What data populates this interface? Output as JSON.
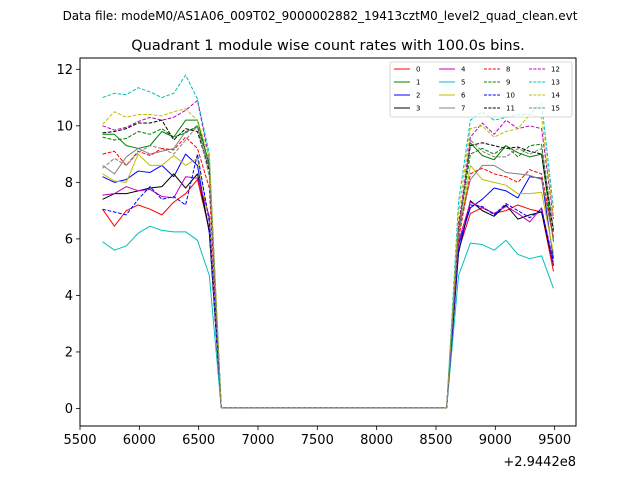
{
  "figure": {
    "suptitle": "Data file: modeM0/AS1A06_009T02_9000002882_19413cztM0_level2_quad_clean.evt"
  },
  "chart_data": {
    "type": "line",
    "title": "Quadrant 1 module wise count rates with 100.0s bins.",
    "xlabel": "",
    "ylabel": "",
    "x_offset_label": "+2.9442e8",
    "xlim": [
      5500,
      9680
    ],
    "ylim": [
      -0.62,
      12.4
    ],
    "xticks": [
      5500,
      6000,
      6500,
      7000,
      7500,
      8000,
      8500,
      9000,
      9500
    ],
    "yticks": [
      0,
      2,
      4,
      6,
      8,
      10,
      12
    ],
    "xtick_labels": [
      "5500",
      "6000",
      "6500",
      "7000",
      "7500",
      "8000",
      "8500",
      "9000",
      "9500"
    ],
    "ytick_labels": [
      "0",
      "2",
      "4",
      "6",
      "8",
      "10",
      "12"
    ],
    "grid": false,
    "legend_position": "top-right",
    "x": [
      5690,
      5790,
      5890,
      5990,
      6090,
      6190,
      6290,
      6390,
      6490,
      6590,
      6690,
      6790,
      6890,
      6990,
      7090,
      7190,
      7290,
      7390,
      7490,
      7590,
      7690,
      7790,
      7890,
      7990,
      8090,
      8190,
      8290,
      8390,
      8490,
      8590,
      8690,
      8790,
      8890,
      8990,
      9090,
      9190,
      9290,
      9390,
      9490
    ],
    "series": [
      {
        "name": "0",
        "color": "#ff0000",
        "dash": "solid",
        "values": [
          7.05,
          6.45,
          7.0,
          7.2,
          7.05,
          6.85,
          7.3,
          7.6,
          8.1,
          6.3,
          0.03,
          0.03,
          0.03,
          0.03,
          0.03,
          0.03,
          0.03,
          0.03,
          0.03,
          0.03,
          0.03,
          0.03,
          0.03,
          0.03,
          0.03,
          0.03,
          0.03,
          0.03,
          0.03,
          0.03,
          5.6,
          6.9,
          7.1,
          6.9,
          7.0,
          7.2,
          7.05,
          6.95,
          4.85
        ]
      },
      {
        "name": "1",
        "color": "#008000",
        "dash": "solid",
        "values": [
          9.7,
          9.7,
          9.3,
          9.2,
          9.3,
          9.8,
          9.6,
          10.2,
          10.2,
          8.6,
          0.03,
          0.03,
          0.03,
          0.03,
          0.03,
          0.03,
          0.03,
          0.03,
          0.03,
          0.03,
          0.03,
          0.03,
          0.03,
          0.03,
          0.03,
          0.03,
          0.03,
          0.03,
          0.03,
          0.03,
          6.2,
          9.4,
          8.95,
          8.8,
          9.3,
          9.05,
          8.9,
          9.0,
          5.9
        ]
      },
      {
        "name": "2",
        "color": "#0000ff",
        "dash": "solid",
        "values": [
          8.2,
          8.0,
          8.1,
          8.4,
          8.35,
          8.6,
          8.2,
          9.0,
          8.6,
          6.2,
          0.03,
          0.03,
          0.03,
          0.03,
          0.03,
          0.03,
          0.03,
          0.03,
          0.03,
          0.03,
          0.03,
          0.03,
          0.03,
          0.03,
          0.03,
          0.03,
          0.03,
          0.03,
          0.03,
          0.03,
          5.8,
          7.1,
          7.4,
          7.8,
          7.7,
          7.45,
          8.2,
          8.15,
          5.3
        ]
      },
      {
        "name": "3",
        "color": "#000000",
        "dash": "solid",
        "values": [
          7.4,
          7.6,
          7.6,
          7.7,
          7.8,
          7.85,
          8.3,
          7.8,
          8.3,
          6.3,
          0.03,
          0.03,
          0.03,
          0.03,
          0.03,
          0.03,
          0.03,
          0.03,
          0.03,
          0.03,
          0.03,
          0.03,
          0.03,
          0.03,
          0.03,
          0.03,
          0.03,
          0.03,
          0.03,
          0.03,
          5.5,
          7.35,
          7.0,
          6.8,
          7.2,
          6.7,
          6.85,
          6.95,
          5.05
        ]
      },
      {
        "name": "4",
        "color": "#bf00bf",
        "dash": "solid",
        "values": [
          7.55,
          7.6,
          7.85,
          7.7,
          7.75,
          7.5,
          7.45,
          8.2,
          8.15,
          6.8,
          0.03,
          0.03,
          0.03,
          0.03,
          0.03,
          0.03,
          0.03,
          0.03,
          0.03,
          0.03,
          0.03,
          0.03,
          0.03,
          0.03,
          0.03,
          0.03,
          0.03,
          0.03,
          0.03,
          0.03,
          5.9,
          7.3,
          7.1,
          6.9,
          7.15,
          6.9,
          6.6,
          7.1,
          5.1
        ]
      },
      {
        "name": "5",
        "color": "#00bfbf",
        "dash": "solid",
        "values": [
          5.9,
          5.6,
          5.75,
          6.2,
          6.45,
          6.3,
          6.25,
          6.25,
          5.95,
          4.7,
          0.03,
          0.03,
          0.03,
          0.03,
          0.03,
          0.03,
          0.03,
          0.03,
          0.03,
          0.03,
          0.03,
          0.03,
          0.03,
          0.03,
          0.03,
          0.03,
          0.03,
          0.03,
          0.03,
          0.03,
          4.7,
          5.85,
          5.8,
          5.6,
          5.95,
          5.45,
          5.3,
          5.4,
          4.25
        ]
      },
      {
        "name": "6",
        "color": "#bfbf00",
        "dash": "solid",
        "values": [
          8.3,
          8.05,
          8.0,
          9.0,
          8.6,
          8.6,
          8.95,
          8.6,
          8.85,
          6.6,
          0.03,
          0.03,
          0.03,
          0.03,
          0.03,
          0.03,
          0.03,
          0.03,
          0.03,
          0.03,
          0.03,
          0.03,
          0.03,
          0.03,
          0.03,
          0.03,
          0.03,
          0.03,
          0.03,
          0.03,
          6.1,
          8.6,
          8.1,
          8.0,
          7.9,
          7.6,
          7.6,
          7.65,
          5.5
        ]
      },
      {
        "name": "7",
        "color": "#808080",
        "dash": "solid",
        "values": [
          8.6,
          8.3,
          8.9,
          9.2,
          9.0,
          9.1,
          9.2,
          9.8,
          9.95,
          8.5,
          0.03,
          0.03,
          0.03,
          0.03,
          0.03,
          0.03,
          0.03,
          0.03,
          0.03,
          0.03,
          0.03,
          0.03,
          0.03,
          0.03,
          0.03,
          0.03,
          0.03,
          0.03,
          0.03,
          0.03,
          6.3,
          8.1,
          8.6,
          8.6,
          8.35,
          8.3,
          8.25,
          8.1,
          6.0
        ]
      },
      {
        "name": "8",
        "color": "#ff0000",
        "dash": "dashed",
        "values": [
          9.0,
          9.1,
          8.6,
          9.1,
          8.95,
          9.2,
          9.15,
          9.6,
          9.2,
          7.8,
          0.03,
          0.03,
          0.03,
          0.03,
          0.03,
          0.03,
          0.03,
          0.03,
          0.03,
          0.03,
          0.03,
          0.03,
          0.03,
          0.03,
          0.03,
          0.03,
          0.03,
          0.03,
          0.03,
          0.03,
          6.0,
          8.3,
          8.5,
          8.3,
          8.2,
          8.0,
          8.45,
          8.3,
          6.05
        ]
      },
      {
        "name": "9",
        "color": "#008000",
        "dash": "dashed",
        "values": [
          9.6,
          9.5,
          9.55,
          9.8,
          9.7,
          9.9,
          9.6,
          9.75,
          10.0,
          8.7,
          0.03,
          0.03,
          0.03,
          0.03,
          0.03,
          0.03,
          0.03,
          0.03,
          0.03,
          0.03,
          0.03,
          0.03,
          0.03,
          0.03,
          0.03,
          0.03,
          0.03,
          0.03,
          0.03,
          0.03,
          6.3,
          9.0,
          9.2,
          9.0,
          9.3,
          8.9,
          9.3,
          9.35,
          6.2
        ]
      },
      {
        "name": "10",
        "color": "#0000ff",
        "dash": "dashed",
        "values": [
          7.05,
          6.95,
          6.85,
          7.4,
          7.85,
          7.4,
          7.5,
          7.2,
          9.0,
          6.6,
          0.03,
          0.03,
          0.03,
          0.03,
          0.03,
          0.03,
          0.03,
          0.03,
          0.03,
          0.03,
          0.03,
          0.03,
          0.03,
          0.03,
          0.03,
          0.03,
          0.03,
          0.03,
          0.03,
          0.03,
          5.6,
          7.2,
          7.15,
          6.85,
          7.25,
          7.0,
          6.75,
          7.05,
          5.2
        ]
      },
      {
        "name": "11",
        "color": "#000000",
        "dash": "dashed",
        "values": [
          9.75,
          9.8,
          9.9,
          10.1,
          10.1,
          10.2,
          9.5,
          9.9,
          9.8,
          8.4,
          0.03,
          0.03,
          0.03,
          0.03,
          0.03,
          0.03,
          0.03,
          0.03,
          0.03,
          0.03,
          0.03,
          0.03,
          0.03,
          0.03,
          0.03,
          0.03,
          0.03,
          0.03,
          0.03,
          0.03,
          6.5,
          9.3,
          9.4,
          9.3,
          9.2,
          9.25,
          9.1,
          9.0,
          6.3
        ]
      },
      {
        "name": "12",
        "color": "#bf00bf",
        "dash": "dashed",
        "values": [
          10.0,
          9.85,
          9.95,
          10.15,
          10.3,
          10.2,
          10.3,
          10.55,
          10.9,
          8.8,
          0.03,
          0.03,
          0.03,
          0.03,
          0.03,
          0.03,
          0.03,
          0.03,
          0.03,
          0.03,
          0.03,
          0.03,
          0.03,
          0.03,
          0.03,
          0.03,
          0.03,
          0.03,
          0.03,
          0.03,
          6.4,
          9.6,
          10.1,
          9.7,
          10.2,
          9.9,
          10.0,
          9.9,
          6.7
        ]
      },
      {
        "name": "13",
        "color": "#00bfbf",
        "dash": "dashed",
        "values": [
          11.0,
          11.15,
          11.1,
          11.35,
          11.2,
          11.0,
          11.15,
          11.8,
          10.95,
          9.0,
          0.03,
          0.03,
          0.03,
          0.03,
          0.03,
          0.03,
          0.03,
          0.03,
          0.03,
          0.03,
          0.03,
          0.03,
          0.03,
          0.03,
          0.03,
          0.03,
          0.03,
          0.03,
          0.03,
          0.03,
          7.3,
          10.2,
          10.5,
          10.2,
          10.3,
          10.4,
          10.4,
          10.8,
          7.1
        ]
      },
      {
        "name": "14",
        "color": "#bfbf00",
        "dash": "dashed",
        "values": [
          10.05,
          10.5,
          10.3,
          10.4,
          10.4,
          10.35,
          10.5,
          10.6,
          10.2,
          8.9,
          0.03,
          0.03,
          0.03,
          0.03,
          0.03,
          0.03,
          0.03,
          0.03,
          0.03,
          0.03,
          0.03,
          0.03,
          0.03,
          0.03,
          0.03,
          0.03,
          0.03,
          0.03,
          0.03,
          0.03,
          6.9,
          9.9,
          10.0,
          9.6,
          9.8,
          9.9,
          10.4,
          10.3,
          6.8
        ]
      },
      {
        "name": "15",
        "color": "#808080",
        "dash": "dashed",
        "values": [
          8.5,
          8.85,
          8.6,
          9.05,
          9.3,
          9.2,
          9.0,
          9.5,
          10.0,
          8.2,
          0.03,
          0.03,
          0.03,
          0.03,
          0.03,
          0.03,
          0.03,
          0.03,
          0.03,
          0.03,
          0.03,
          0.03,
          0.03,
          0.03,
          0.03,
          0.03,
          0.03,
          0.03,
          0.03,
          0.03,
          6.2,
          9.5,
          9.1,
          8.9,
          8.9,
          9.2,
          9.0,
          9.2,
          6.4
        ]
      }
    ]
  }
}
